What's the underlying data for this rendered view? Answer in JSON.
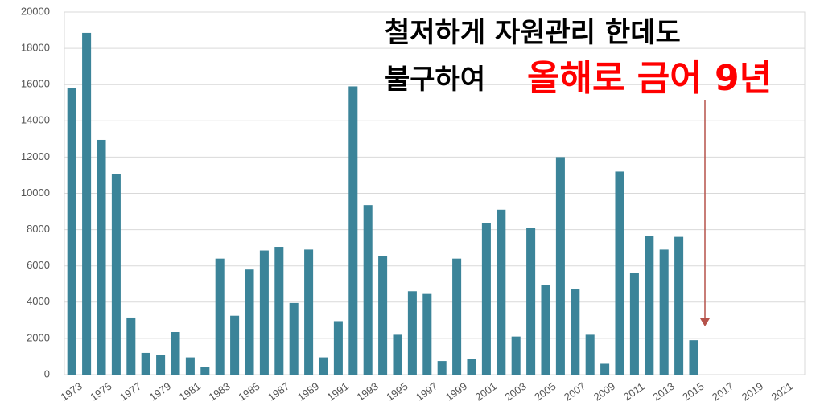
{
  "chart_data": {
    "type": "bar",
    "annotations": [
      {
        "text": "철저하게 자원관리 한데도",
        "color": "#000000"
      },
      {
        "text": "불구하여",
        "color": "#000000"
      },
      {
        "text": "올해로 금어 9년",
        "color": "#ff0000"
      }
    ],
    "categories": [
      "1973",
      null,
      "1975",
      null,
      "1977",
      null,
      "1979",
      null,
      "1981",
      null,
      "1983",
      null,
      "1985",
      null,
      "1987",
      null,
      "1989",
      null,
      "1991",
      null,
      "1993",
      null,
      "1995",
      null,
      "1997",
      null,
      "1999",
      null,
      "2001",
      null,
      "2003",
      null,
      "2005",
      null,
      "2007",
      null,
      "2009",
      null,
      "2011",
      null,
      "2013",
      null,
      "2015",
      null,
      "2017",
      null,
      "2019",
      null,
      "2021",
      null
    ],
    "values": [
      15800,
      18850,
      12950,
      11050,
      3150,
      1200,
      1100,
      2350,
      950,
      400,
      6400,
      3250,
      5800,
      6850,
      7050,
      3950,
      6900,
      950,
      2950,
      15900,
      9350,
      6550,
      2200,
      4600,
      4450,
      750,
      6400,
      850,
      8350,
      9100,
      2100,
      8100,
      4950,
      12000,
      4700,
      2200,
      600,
      11200,
      5600,
      7650,
      6900,
      7600,
      1900,
      null,
      null,
      null,
      null,
      null,
      null,
      null
    ],
    "color": "#3b8499",
    "arrow_color": "#b5524a",
    "ylim": [
      0,
      20000
    ],
    "yticks": [
      0,
      2000,
      4000,
      6000,
      8000,
      10000,
      12000,
      14000,
      16000,
      18000,
      20000
    ],
    "grid": true
  }
}
